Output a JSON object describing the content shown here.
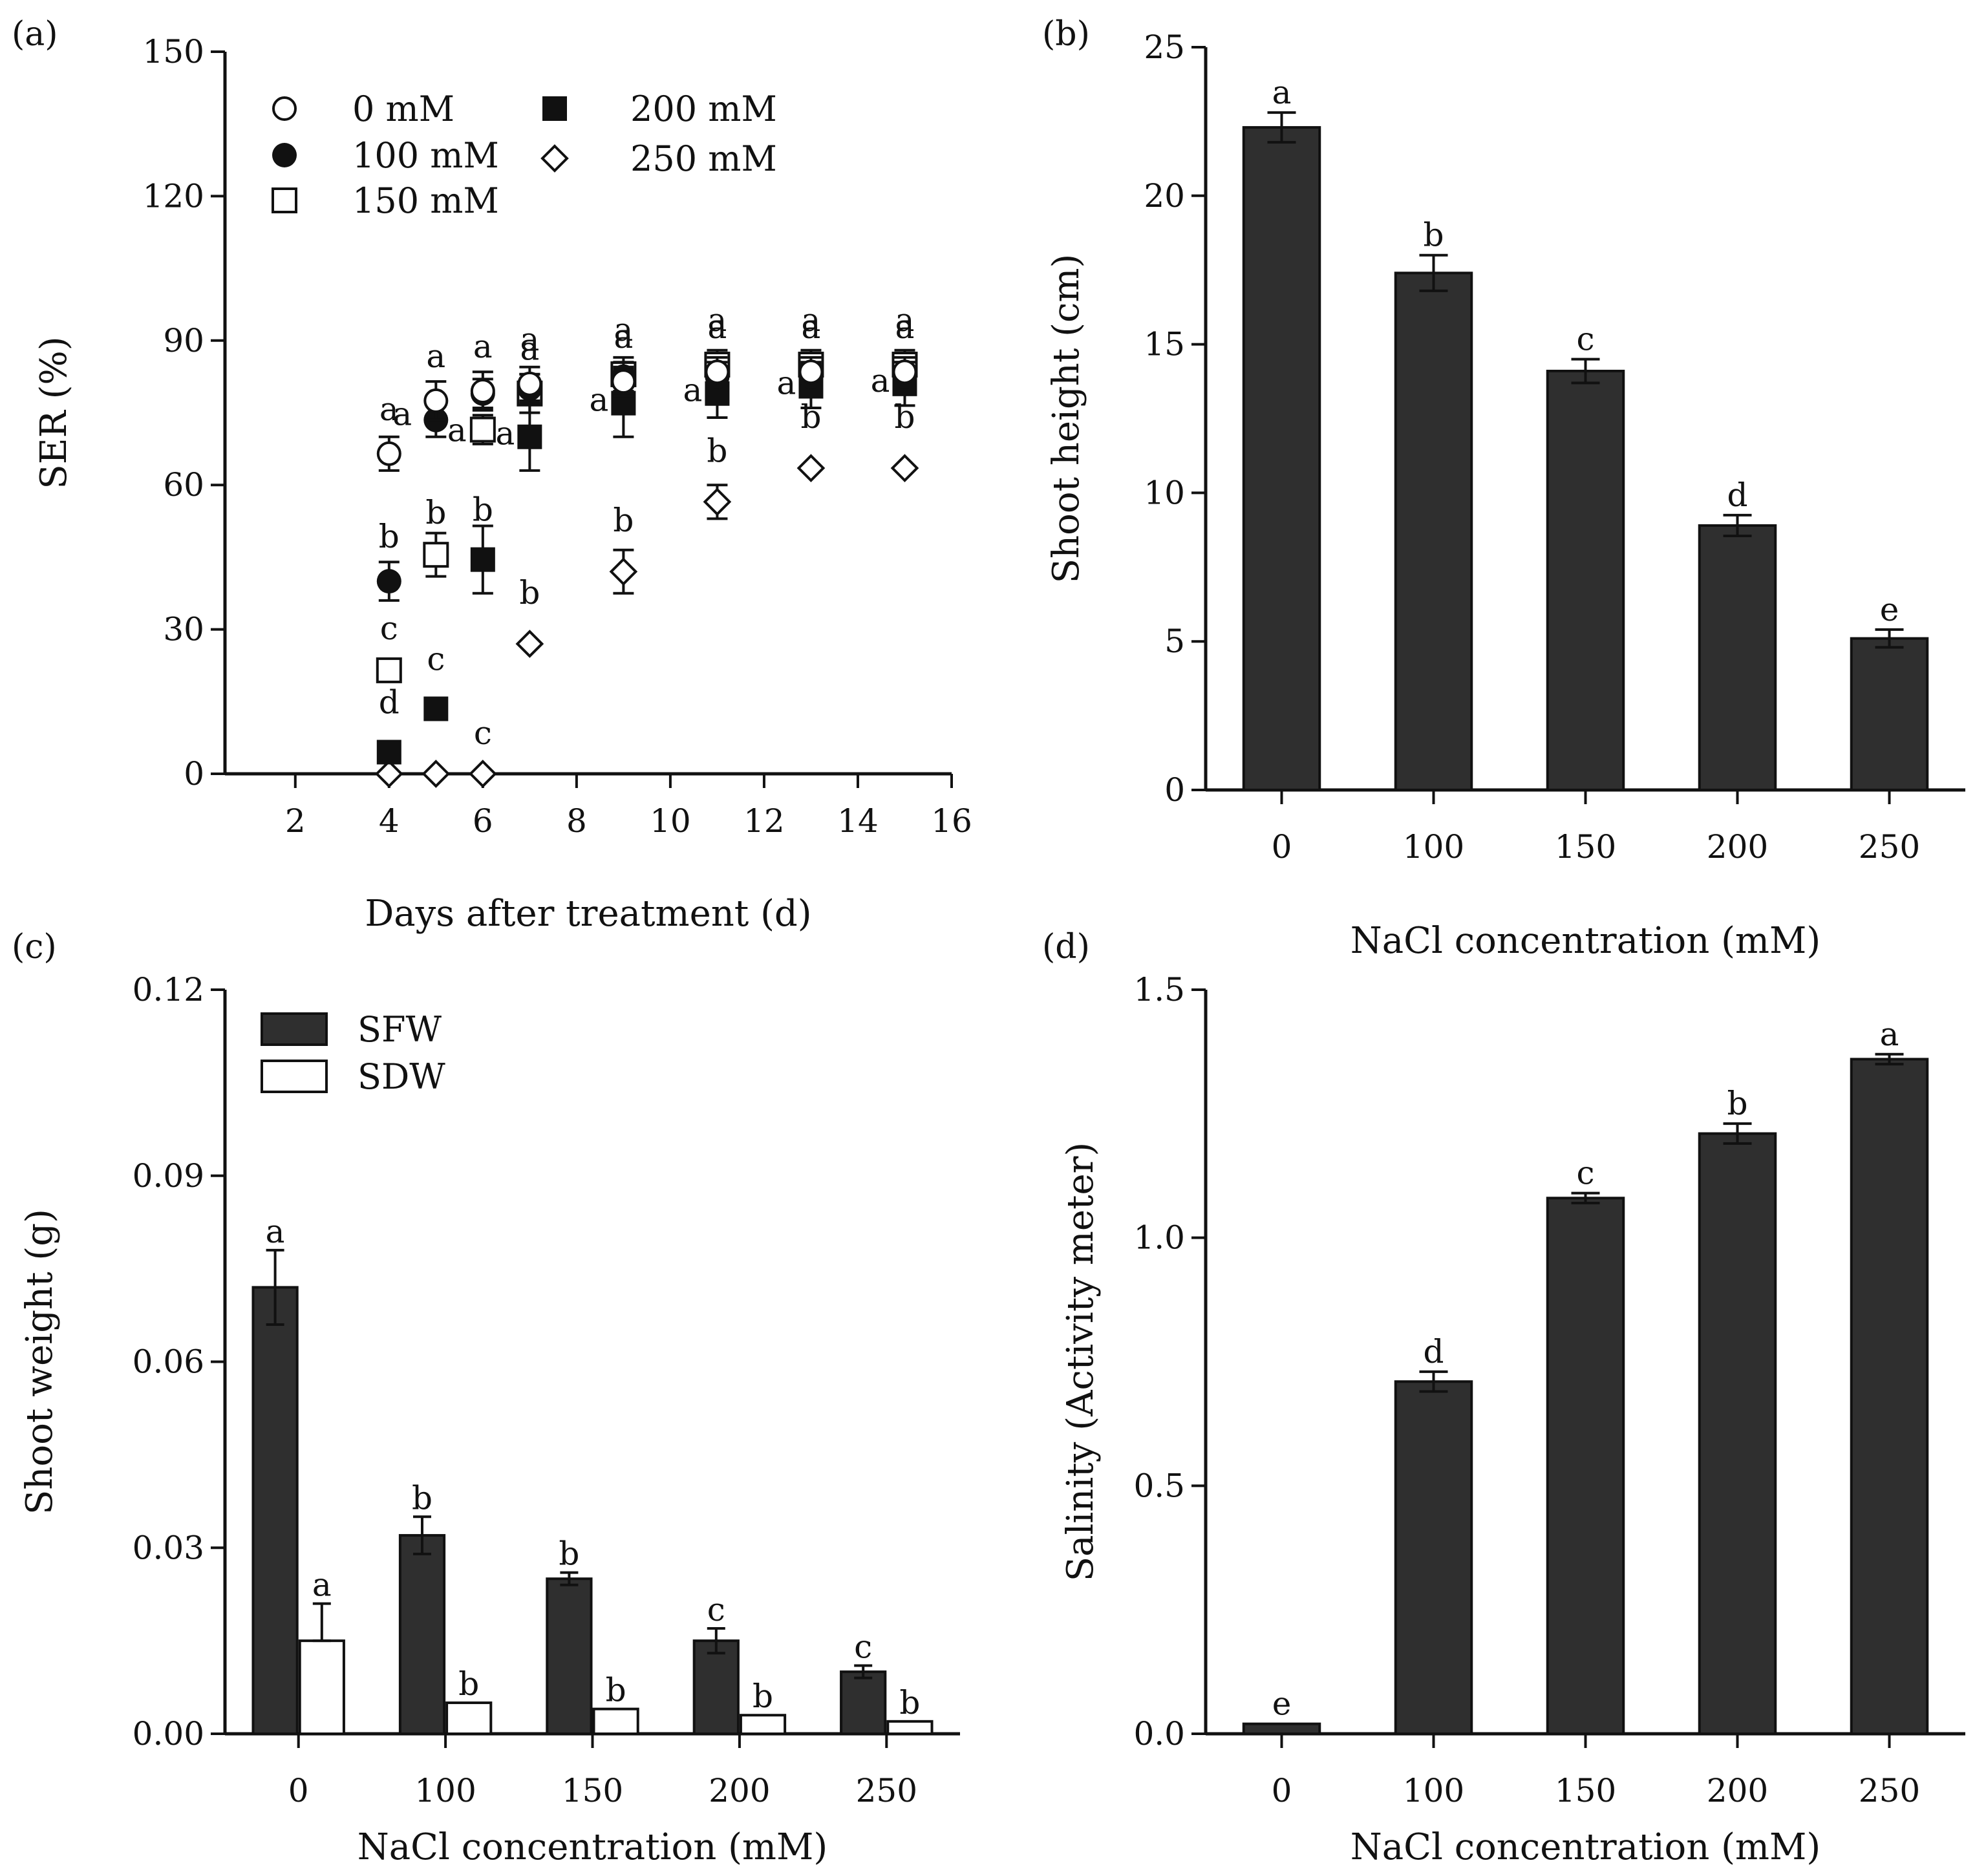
{
  "colors": {
    "bar_fill": "#2f2f2f",
    "axis": "#111111",
    "open_fill": "#ffffff"
  },
  "chart_data": [
    {
      "panel": "(a)",
      "type": "scatter",
      "xlabel": "Days after treatment (d)",
      "ylabel": "SER (%)",
      "xlim": [
        0.5,
        16
      ],
      "ylim": [
        0,
        150
      ],
      "xticks": [
        "2",
        "4",
        "6",
        "8",
        "10",
        "12",
        "14",
        "16"
      ],
      "yticks": [
        "0",
        "30",
        "60",
        "90",
        "120",
        "150"
      ],
      "legend": [
        "0 mM",
        "100 mM",
        "150 mM",
        "200 mM",
        "250 mM"
      ],
      "series": [
        {
          "name": "0 mM",
          "marker": "open-circle",
          "points": [
            {
              "x": 4,
              "y": 66.5,
              "err": 3.5,
              "label": "a"
            },
            {
              "x": 5,
              "y": 77.5,
              "err": 4,
              "label": "a"
            },
            {
              "x": 6,
              "y": 79.5,
              "err": 4,
              "label": "a"
            },
            {
              "x": 7,
              "y": 81,
              "err": 3.5,
              "label": "a"
            },
            {
              "x": 9,
              "y": 81.5,
              "err": 3,
              "label": "a"
            },
            {
              "x": 11,
              "y": 83.5,
              "err": 3,
              "label": "a"
            },
            {
              "x": 13,
              "y": 83.5,
              "err": 3,
              "label": "a"
            },
            {
              "x": 15,
              "y": 83.5,
              "err": 3,
              "label": "a"
            }
          ]
        },
        {
          "name": "100 mM",
          "marker": "filled-circle",
          "points": [
            {
              "x": 4,
              "y": 40,
              "err": 4,
              "label": "b"
            },
            {
              "x": 5,
              "y": 73.5,
              "err": 3.5,
              "label": "a"
            },
            {
              "x": 6,
              "y": 79,
              "err": 3,
              "label": ""
            },
            {
              "x": 7,
              "y": 80,
              "err": 3,
              "label": ""
            },
            {
              "x": 9,
              "y": 82.5,
              "err": 3,
              "label": ""
            },
            {
              "x": 11,
              "y": 82.5,
              "err": 3,
              "label": ""
            },
            {
              "x": 13,
              "y": 82.5,
              "err": 3,
              "label": ""
            },
            {
              "x": 15,
              "y": 82.5,
              "err": 3,
              "label": ""
            }
          ]
        },
        {
          "name": "150 mM",
          "marker": "open-square",
          "points": [
            {
              "x": 4,
              "y": 21.5,
              "err": 0,
              "label": "c"
            },
            {
              "x": 5,
              "y": 45.5,
              "err": 4.5,
              "label": "b"
            },
            {
              "x": 6,
              "y": 71.5,
              "err": 3,
              "label": "a"
            },
            {
              "x": 7,
              "y": 79,
              "err": 4,
              "label": "a"
            },
            {
              "x": 9,
              "y": 83,
              "err": 3.5,
              "label": "a"
            },
            {
              "x": 11,
              "y": 85,
              "err": 3,
              "label": "a"
            },
            {
              "x": 13,
              "y": 85,
              "err": 3,
              "label": "a"
            },
            {
              "x": 15,
              "y": 85,
              "err": 3,
              "label": "a"
            }
          ]
        },
        {
          "name": "200 mM",
          "marker": "filled-square",
          "points": [
            {
              "x": 4,
              "y": 4.5,
              "err": 0,
              "label": "d"
            },
            {
              "x": 5,
              "y": 13.5,
              "err": 0,
              "label": "c"
            },
            {
              "x": 6,
              "y": 44.5,
              "err": 7,
              "label": "b"
            },
            {
              "x": 7,
              "y": 70,
              "err": 7,
              "label": "a"
            },
            {
              "x": 9,
              "y": 77,
              "err": 7,
              "label": "a"
            },
            {
              "x": 11,
              "y": 79,
              "err": 5,
              "label": "a"
            },
            {
              "x": 13,
              "y": 80.5,
              "err": 4.5,
              "label": "a"
            },
            {
              "x": 15,
              "y": 81,
              "err": 4.5,
              "label": "a"
            }
          ]
        },
        {
          "name": "250 mM",
          "marker": "open-diamond",
          "points": [
            {
              "x": 4,
              "y": 0,
              "err": 0,
              "label": ""
            },
            {
              "x": 5,
              "y": 0,
              "err": 0,
              "label": ""
            },
            {
              "x": 6,
              "y": 0,
              "err": 0,
              "label": "c"
            },
            {
              "x": 7,
              "y": 27,
              "err": 0,
              "label": "b"
            },
            {
              "x": 9,
              "y": 42,
              "err": 4.5,
              "label": "b"
            },
            {
              "x": 11,
              "y": 56.5,
              "err": 3.5,
              "label": "b"
            },
            {
              "x": 13,
              "y": 63.5,
              "err": 0,
              "label": "b"
            },
            {
              "x": 15,
              "y": 63.5,
              "err": 0,
              "label": "b"
            }
          ]
        }
      ]
    },
    {
      "panel": "(b)",
      "type": "bar",
      "xlabel": "NaCl concentration (mM)",
      "ylabel": "Shoot height (cm)",
      "ylim": [
        0,
        25
      ],
      "yticks": [
        "0",
        "5",
        "10",
        "15",
        "20",
        "25"
      ],
      "categories": [
        "0",
        "100",
        "150",
        "200",
        "250"
      ],
      "values": [
        22.3,
        17.4,
        14.1,
        8.9,
        5.1
      ],
      "errors": [
        0.5,
        0.6,
        0.4,
        0.35,
        0.3
      ],
      "labels": [
        "a",
        "b",
        "c",
        "d",
        "e"
      ]
    },
    {
      "panel": "(c)",
      "type": "bar",
      "xlabel": "NaCl concentration (mM)",
      "ylabel": "Shoot weight (g)",
      "ylim": [
        0,
        0.12
      ],
      "yticks": [
        "0.00",
        "0.03",
        "0.06",
        "0.09",
        "0.12"
      ],
      "categories": [
        "0",
        "100",
        "150",
        "200",
        "250"
      ],
      "legend": [
        "SFW",
        "SDW"
      ],
      "series": [
        {
          "name": "SFW",
          "values": [
            0.072,
            0.032,
            0.025,
            0.015,
            0.01
          ],
          "errors": [
            0.006,
            0.003,
            0.001,
            0.002,
            0.001
          ],
          "labels": [
            "a",
            "b",
            "b",
            "c",
            "c"
          ]
        },
        {
          "name": "SDW",
          "values": [
            0.015,
            0.005,
            0.004,
            0.003,
            0.002
          ],
          "errors": [
            0.006,
            0,
            0,
            0,
            0
          ],
          "labels": [
            "a",
            "b",
            "b",
            "b",
            "b"
          ]
        }
      ]
    },
    {
      "panel": "(d)",
      "type": "bar",
      "xlabel": "NaCl concentration (mM)",
      "ylabel": "Salinity (Activity meter)",
      "ylim": [
        0,
        1.5
      ],
      "yticks": [
        "0.0",
        "0.5",
        "1.0",
        "1.5"
      ],
      "categories": [
        "0",
        "100",
        "150",
        "200",
        "250"
      ],
      "values": [
        0.02,
        0.71,
        1.08,
        1.21,
        1.36
      ],
      "errors": [
        0,
        0.02,
        0.01,
        0.02,
        0.01
      ],
      "labels": [
        "e",
        "d",
        "c",
        "b",
        "a"
      ]
    }
  ]
}
